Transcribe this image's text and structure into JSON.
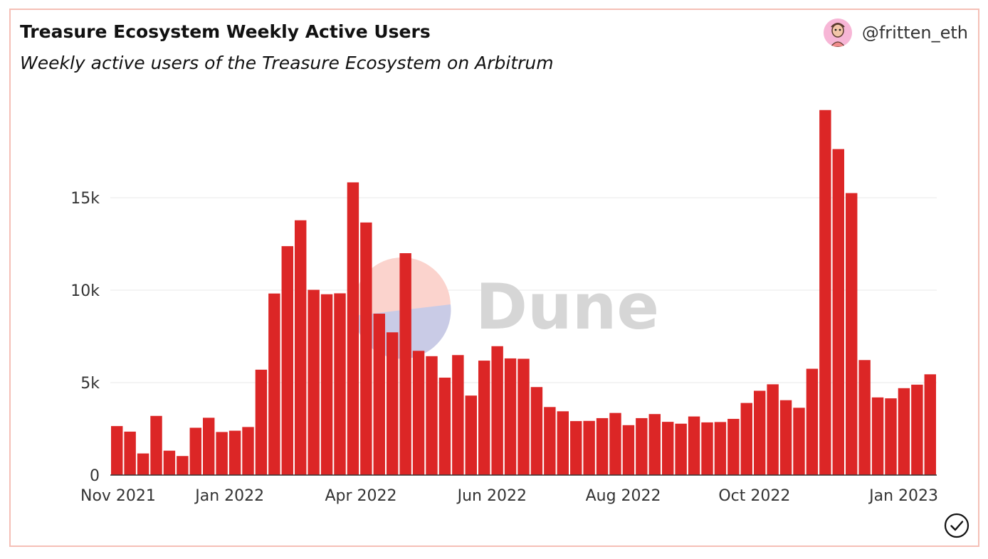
{
  "header": {
    "title": "Treasure Ecosystem Weekly Active Users",
    "subtitle": "Weekly active users of the Treasure Ecosystem on Arbitrum",
    "author": "@fritten_eth"
  },
  "watermark": {
    "text": "Dune"
  },
  "icons": {
    "avatar": "avatar-icon",
    "status": "check-circle-icon"
  },
  "colors": {
    "bar": "#dc2626",
    "grid": "#e8e8e8",
    "frame": "#f5bfb6",
    "watermark_text": "#d6d6d6"
  },
  "chart_data": {
    "type": "bar",
    "x_tick_labels": [
      "Nov 2021",
      "Jan 2022",
      "Apr 2022",
      "Jun 2022",
      "Aug 2022",
      "Oct 2022",
      "Jan 2023"
    ],
    "y_tick_labels": [
      "0",
      "5k",
      "10k",
      "15k"
    ],
    "y_ticks": [
      0,
      5000,
      10000,
      15000
    ],
    "ylim": [
      0,
      20000
    ],
    "values": [
      2650,
      2350,
      1170,
      3200,
      1320,
      1030,
      2560,
      3100,
      2330,
      2400,
      2600,
      5700,
      9820,
      12380,
      13780,
      10020,
      9780,
      9830,
      15830,
      13660,
      8730,
      7720,
      12000,
      6720,
      6430,
      5270,
      6490,
      4300,
      6190,
      6970,
      6310,
      6290,
      4760,
      3680,
      3450,
      2920,
      2930,
      3080,
      3360,
      2700,
      3080,
      3300,
      2880,
      2780,
      3170,
      2850,
      2870,
      3040,
      3900,
      4560,
      4910,
      4050,
      3640,
      5750,
      19740,
      17630,
      15250,
      6220,
      4200,
      4150,
      4700,
      4890,
      5450
    ],
    "grid": true,
    "legend": "none"
  }
}
